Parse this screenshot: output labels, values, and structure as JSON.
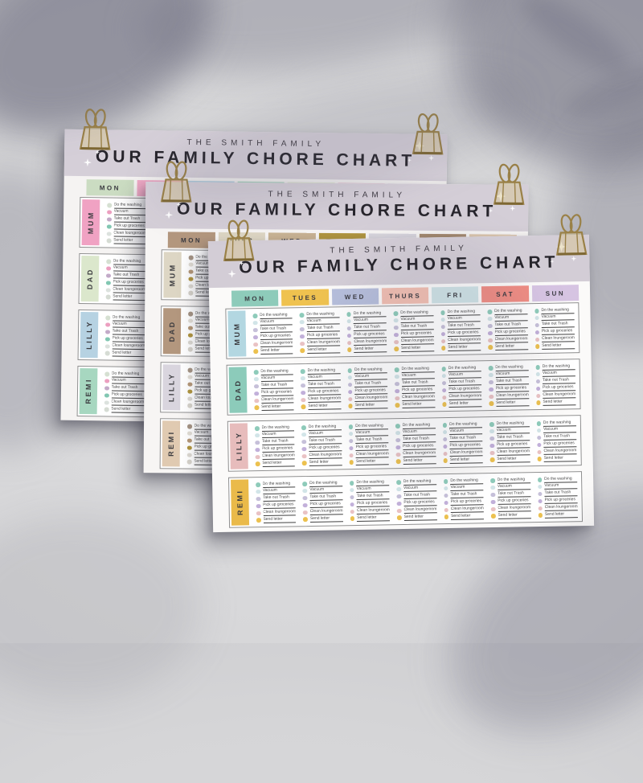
{
  "scene": {
    "background_color": "#d5d5d7",
    "shadow_color": "#8e8e9a",
    "clip_gold_color": "#9a8147",
    "clip_gold_light": "#d6c48c",
    "clip_gold_dark": "#7e6833"
  },
  "chart": {
    "family_label": "THE SMITH FAMILY",
    "title": "OUR FAMILY CHORE CHART",
    "days": [
      "MON",
      "TUES",
      "WED",
      "THURS",
      "FRI",
      "SAT",
      "SUN"
    ],
    "members": [
      "MUM",
      "DAD",
      "LILLY",
      "REMI"
    ],
    "chores": [
      "Do the washing",
      "Vacuum",
      "Take out Trash",
      "Pick up groceries",
      "Clean loungeroom",
      "Send letter"
    ]
  },
  "sheets": [
    {
      "name": "back-sheet",
      "band_color": "#d5cfd8",
      "paper_color": "#f5f3f2",
      "day_colors": [
        "#cbdcc2",
        "#f0a9c5",
        "#b7d3e3",
        "#a9d8c1",
        "#dde8cd",
        "#edb7cb",
        "#c8b0cf"
      ],
      "member_colors": [
        "#f0a2c3",
        "#dbe7cc",
        "#b6d2e2",
        "#a7d7c0"
      ],
      "chore_dot_colors": [
        "#d6e0d2",
        "#ec9fc0",
        "#c3aac8",
        "#82c7b2",
        "#dce2de",
        "#d6dcd4"
      ]
    },
    {
      "name": "middle-sheet",
      "band_color": "#d4ced7",
      "paper_color": "#f7f5f4",
      "day_colors": [
        "#b3977e",
        "#ddd6c4",
        "#c9b394",
        "#b0953f",
        "#d9d6de",
        "#a58a6f",
        "#e0cab1"
      ],
      "member_colors": [
        "#ddd6c4",
        "#b3977e",
        "#d9d5de",
        "#e0cab1"
      ],
      "chore_dot_colors": [
        "#a59484",
        "#e2ded5",
        "#b59878",
        "#b0953f",
        "#dcd9d2",
        "#d6d3cb"
      ]
    },
    {
      "name": "front-sheet",
      "band_color": "#d3cdd6",
      "paper_color": "#fbfaf9",
      "day_colors": [
        "#8ecbba",
        "#efc24f",
        "#b6bedb",
        "#f2bfb2",
        "#cfe2e6",
        "#ef8c83",
        "#d6c4e2"
      ],
      "member_colors": [
        "#b3d7e1",
        "#8ccbba",
        "#e7bcbc",
        "#eaba4a"
      ],
      "chore_dot_colors": [
        "#8ecbba",
        "#d2e5e8",
        "#c6c0d9",
        "#c2b0da",
        "#e9c2c4",
        "#ecc14f"
      ]
    }
  ]
}
